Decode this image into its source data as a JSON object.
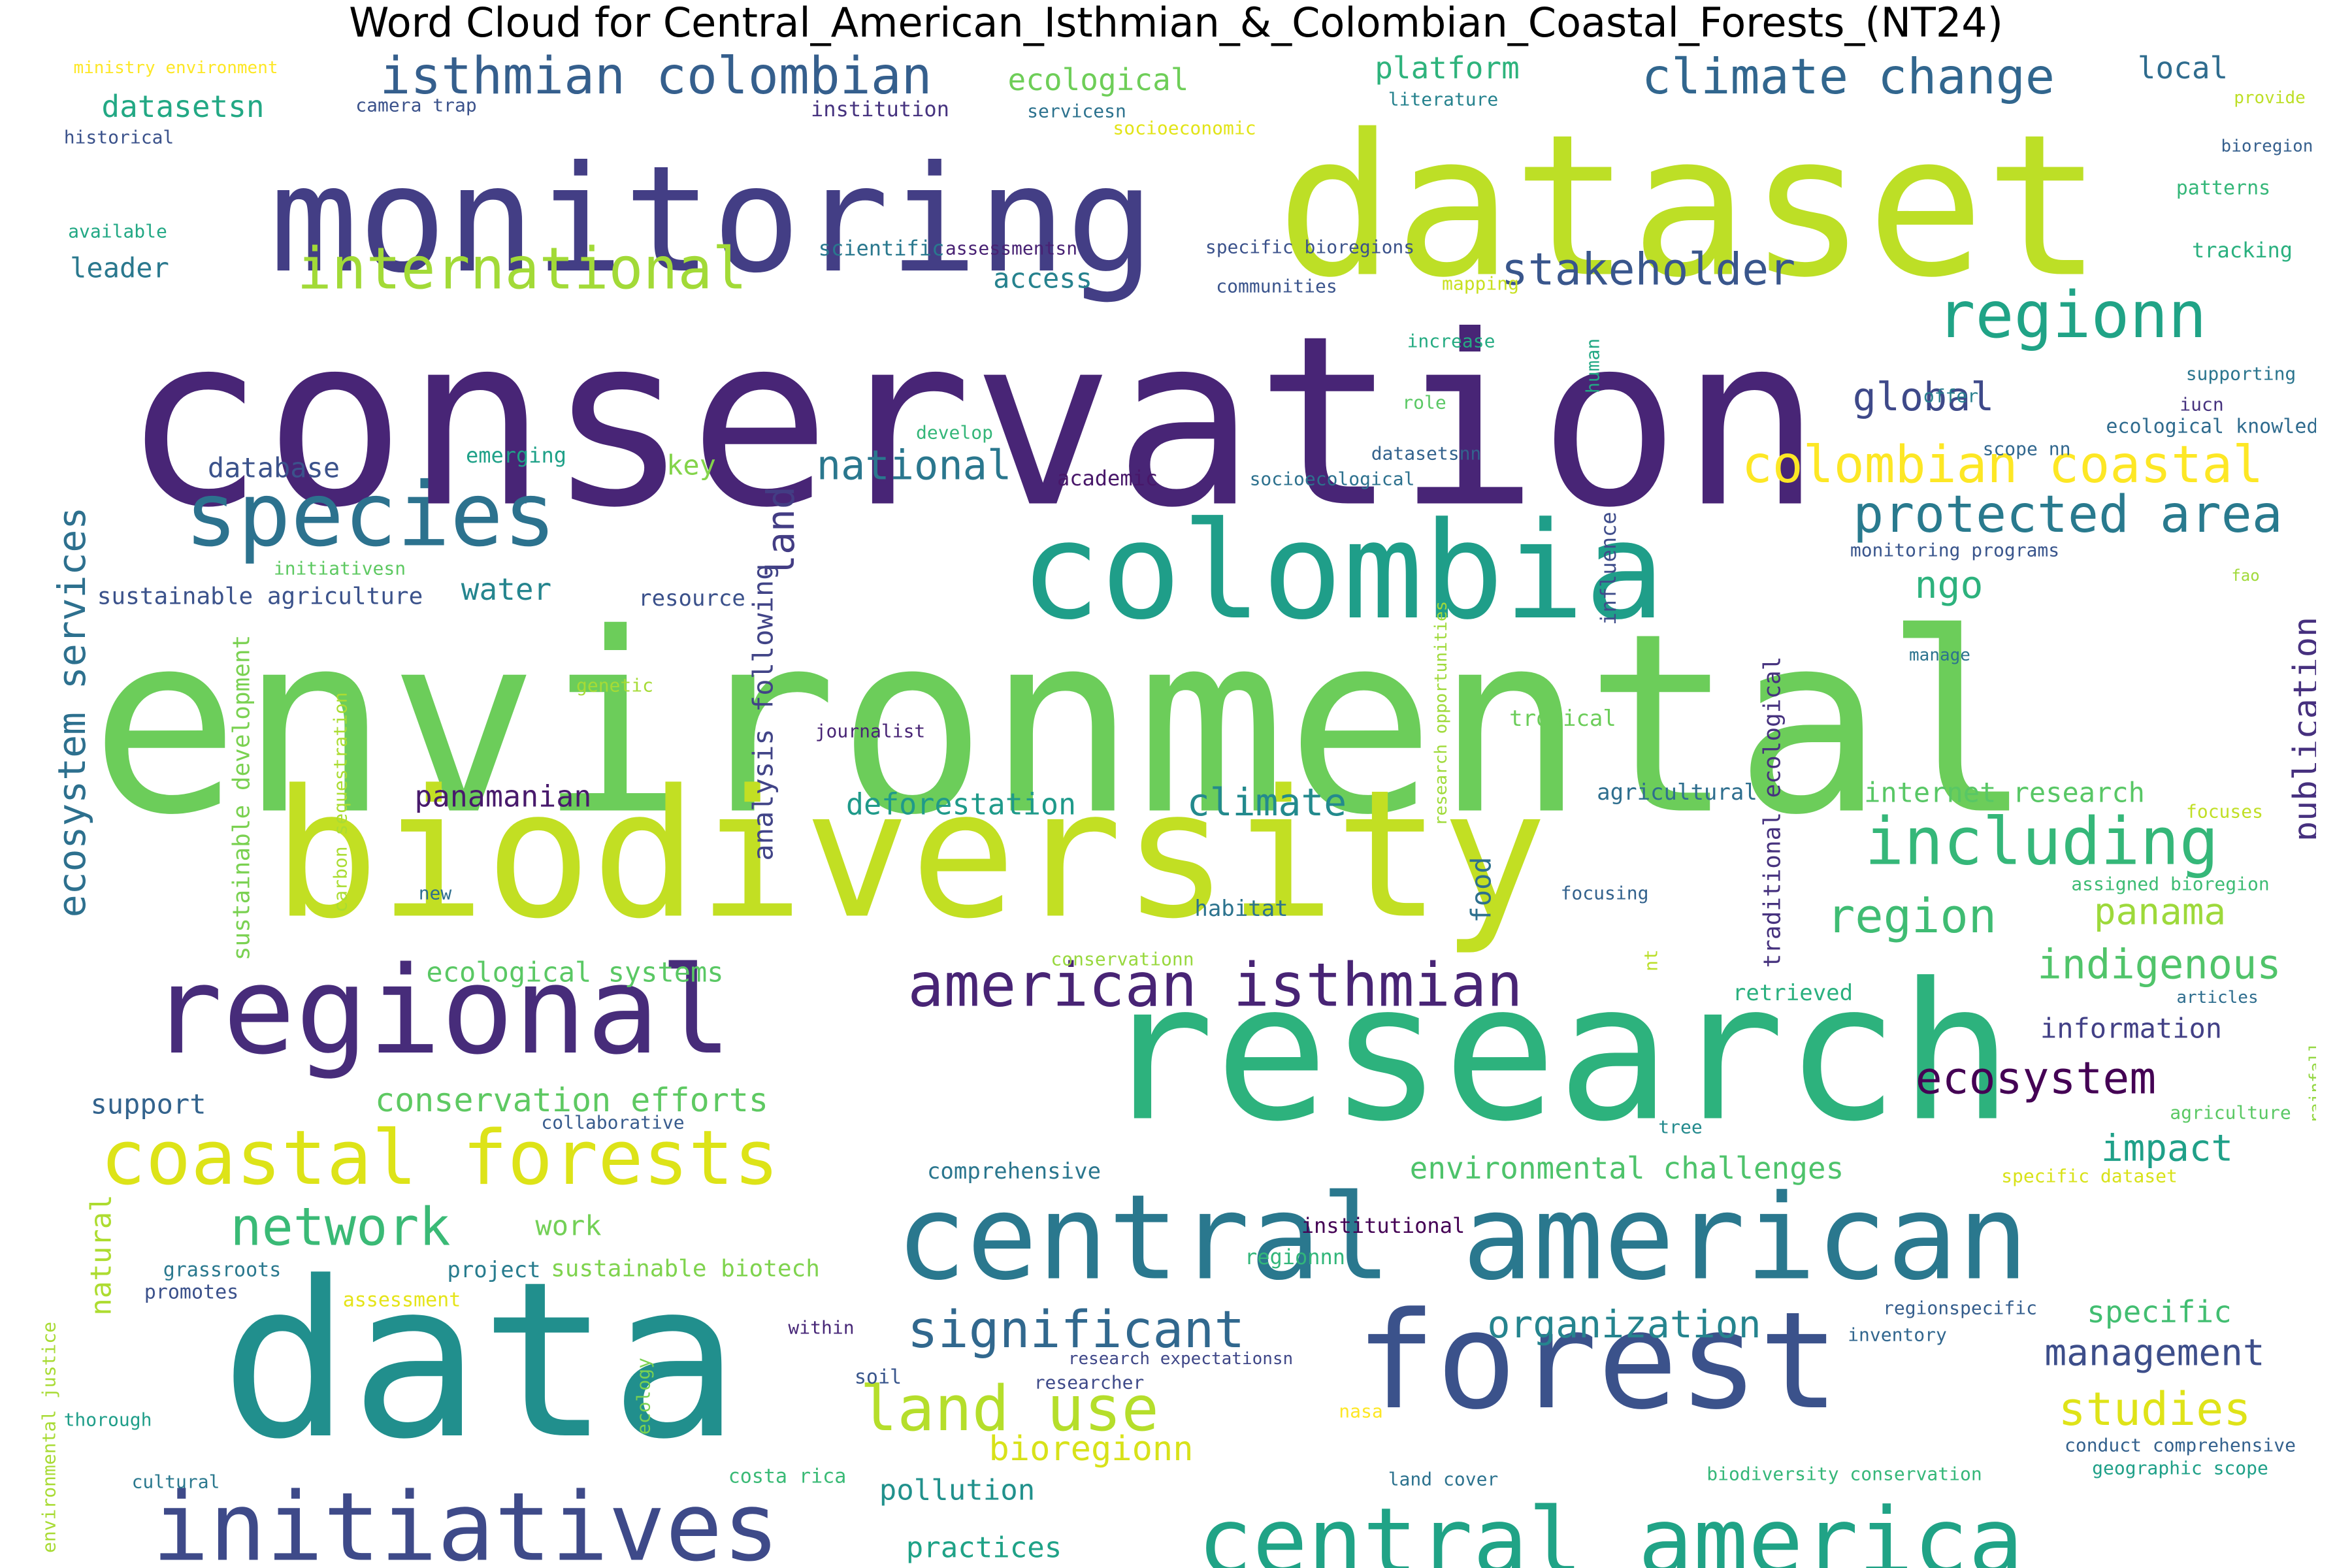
{
  "chart_data": {
    "type": "wordcloud",
    "title": "Word Cloud for Central_American_Isthmian_&_Colombian_Coastal_Forests_(NT24)",
    "colormap": "viridis",
    "background": "#ffffff",
    "words": [
      {
        "text": "conservation",
        "color": "#482576"
      },
      {
        "text": "environmental",
        "color": "#6ccd5a"
      },
      {
        "text": "biodiversity",
        "color": "#c2df23"
      },
      {
        "text": "dataset",
        "color": "#bddf26"
      },
      {
        "text": "monitoring",
        "color": "#433e85"
      },
      {
        "text": "research",
        "color": "#2db27d"
      },
      {
        "text": "data",
        "color": "#218f8d"
      },
      {
        "text": "forest",
        "color": "#3b528b"
      },
      {
        "text": "colombia",
        "color": "#1f9e89"
      },
      {
        "text": "regional",
        "color": "#472c7a"
      },
      {
        "text": "central american",
        "color": "#2a788e"
      },
      {
        "text": "central america",
        "color": "#20a386"
      },
      {
        "text": "initiatives",
        "color": "#3e4a89"
      },
      {
        "text": "species",
        "color": "#2c728e"
      },
      {
        "text": "coastal forests",
        "color": "#dde318"
      },
      {
        "text": "american isthmian",
        "color": "#482475"
      },
      {
        "text": "including",
        "color": "#35b779"
      },
      {
        "text": "international",
        "color": "#a2da37"
      },
      {
        "text": "isthmian colombian",
        "color": "#355f8d"
      },
      {
        "text": "climate change",
        "color": "#31668e"
      },
      {
        "text": "regionn",
        "color": "#20a386"
      },
      {
        "text": "colombian coastal",
        "color": "#fde725"
      },
      {
        "text": "protected area",
        "color": "#297a8e"
      },
      {
        "text": "significant",
        "color": "#31688e"
      },
      {
        "text": "land use",
        "color": "#b5de2b"
      },
      {
        "text": "ecosystem",
        "color": "#440154"
      },
      {
        "text": "stakeholder",
        "color": "#39568c"
      },
      {
        "text": "ecosystem services",
        "color": "#2d708e"
      },
      {
        "text": "network",
        "color": "#3aba76"
      },
      {
        "text": "region",
        "color": "#3fbc73"
      },
      {
        "text": "studies",
        "color": "#dfe318"
      },
      {
        "text": "national",
        "color": "#2a778e"
      },
      {
        "text": "organization",
        "color": "#25848e"
      },
      {
        "text": "management",
        "color": "#3d4e8a"
      },
      {
        "text": "global",
        "color": "#3e4989"
      },
      {
        "text": "publication",
        "color": "#46307e"
      },
      {
        "text": "indigenous",
        "color": "#50c46a"
      },
      {
        "text": "climate",
        "color": "#238a8d"
      },
      {
        "text": "panama",
        "color": "#9dd93b"
      },
      {
        "text": "impact",
        "color": "#1fa088"
      },
      {
        "text": "environmental challenges",
        "color": "#4ec36b"
      },
      {
        "text": "conservation efforts",
        "color": "#5ec962"
      },
      {
        "text": "bioregionn",
        "color": "#d8e219"
      },
      {
        "text": "datasetsn",
        "color": "#22a884"
      },
      {
        "text": "ecological",
        "color": "#6ece58"
      },
      {
        "text": "platform",
        "color": "#2eb37c"
      },
      {
        "text": "local",
        "color": "#2f6c8e"
      },
      {
        "text": "water",
        "color": "#25858e"
      },
      {
        "text": "ngo",
        "color": "#2db27d"
      },
      {
        "text": "specific",
        "color": "#42be71"
      },
      {
        "text": "information",
        "color": "#424086"
      },
      {
        "text": "deforestation",
        "color": "#1f9a8a"
      },
      {
        "text": "panamanian",
        "color": "#481a6c"
      },
      {
        "text": "pollution",
        "color": "#21918c"
      },
      {
        "text": "practices",
        "color": "#1fa287"
      },
      {
        "text": "internet research",
        "color": "#58c765"
      },
      {
        "text": "access",
        "color": "#26828e"
      },
      {
        "text": "leader",
        "color": "#2a788e"
      },
      {
        "text": "database",
        "color": "#3b528b"
      },
      {
        "text": "key",
        "color": "#84d44b"
      },
      {
        "text": "land",
        "color": "#433d84"
      },
      {
        "text": "analysis following",
        "color": "#414487"
      },
      {
        "text": "food",
        "color": "#2d708e"
      },
      {
        "text": "work",
        "color": "#73d056"
      },
      {
        "text": "support",
        "color": "#33638d"
      },
      {
        "text": "natural",
        "color": "#addc30"
      },
      {
        "text": "ecological systems",
        "color": "#5ac864"
      },
      {
        "text": "sustainable agriculture",
        "color": "#3b528b"
      },
      {
        "text": "sustainable development",
        "color": "#7ad151"
      },
      {
        "text": "traditional ecological",
        "color": "#46327e"
      },
      {
        "text": "tropical",
        "color": "#6ccd5a"
      },
      {
        "text": "habitat",
        "color": "#2c738e"
      },
      {
        "text": "comprehensive",
        "color": "#2a768e"
      },
      {
        "text": "sustainable biotech",
        "color": "#7fd34e"
      },
      {
        "text": "project",
        "color": "#287c8e"
      },
      {
        "text": "resource",
        "color": "#3b518b"
      },
      {
        "text": "retrieved",
        "color": "#2ab07f"
      },
      {
        "text": "agricultural",
        "color": "#2e6e8e"
      },
      {
        "text": "grassroots",
        "color": "#2a788e"
      },
      {
        "text": "promotes",
        "color": "#3b518b"
      },
      {
        "text": "assessment",
        "color": "#e5e419"
      },
      {
        "text": "institutional",
        "color": "#440154"
      },
      {
        "text": "regionnn",
        "color": "#32b67a"
      },
      {
        "text": "inventory",
        "color": "#31668e"
      },
      {
        "text": "regionspecific",
        "color": "#355e8d"
      },
      {
        "text": "within",
        "color": "#482878"
      },
      {
        "text": "soil",
        "color": "#39568c"
      },
      {
        "text": "researcher",
        "color": "#3e4a89"
      },
      {
        "text": "research expectationsn",
        "color": "#3f4788"
      },
      {
        "text": "environmental justice",
        "color": "#a8db34"
      },
      {
        "text": "ecology",
        "color": "#7ad151"
      },
      {
        "text": "nasa",
        "color": "#fde725"
      },
      {
        "text": "costa rica",
        "color": "#3aba76"
      },
      {
        "text": "land cover",
        "color": "#2c728e"
      },
      {
        "text": "biodiversity conservation",
        "color": "#35b779"
      },
      {
        "text": "conduct comprehensive",
        "color": "#34618d"
      },
      {
        "text": "geographic scope",
        "color": "#1fa088"
      },
      {
        "text": "cultural",
        "color": "#2a788e"
      },
      {
        "text": "thorough",
        "color": "#1f9e89"
      },
      {
        "text": "ministry environment",
        "color": "#fde725"
      },
      {
        "text": "camera trap",
        "color": "#3b528b"
      },
      {
        "text": "institution",
        "color": "#46337f"
      },
      {
        "text": "servicesn",
        "color": "#2c728e"
      },
      {
        "text": "socioeconomic",
        "color": "#e2e418"
      },
      {
        "text": "literature",
        "color": "#26828e"
      },
      {
        "text": "provide",
        "color": "#bddf26"
      },
      {
        "text": "historical",
        "color": "#3b528b"
      },
      {
        "text": "bioregion",
        "color": "#355f8d"
      },
      {
        "text": "patterns",
        "color": "#35b779"
      },
      {
        "text": "available",
        "color": "#22a884"
      },
      {
        "text": "scientific",
        "color": "#2a788e"
      },
      {
        "text": "assessmentsn",
        "color": "#482173"
      },
      {
        "text": "specific bioregions",
        "color": "#3b528b"
      },
      {
        "text": "tracking",
        "color": "#2ab07f"
      },
      {
        "text": "communities",
        "color": "#3a548c"
      },
      {
        "text": "mapping",
        "color": "#c8e020"
      },
      {
        "text": "increase",
        "color": "#25ab82"
      },
      {
        "text": "human",
        "color": "#22a884"
      },
      {
        "text": "supporting",
        "color": "#2b758e"
      },
      {
        "text": "offer",
        "color": "#277f8e"
      },
      {
        "text": "iucn",
        "color": "#46327e"
      },
      {
        "text": "role",
        "color": "#5ac864"
      },
      {
        "text": "develop",
        "color": "#34b679"
      },
      {
        "text": "emerging",
        "color": "#1fa188"
      },
      {
        "text": "datasetsnn",
        "color": "#33628d"
      },
      {
        "text": "scope nn",
        "color": "#31678e"
      },
      {
        "text": "ecological knowledge",
        "color": "#2f6b8e"
      },
      {
        "text": "academic",
        "color": "#481769"
      },
      {
        "text": "socioecological",
        "color": "#2d718e"
      },
      {
        "text": "influence",
        "color": "#3e4c8a"
      },
      {
        "text": "monitoring programs",
        "color": "#39558c"
      },
      {
        "text": "initiativesn",
        "color": "#5ec962"
      },
      {
        "text": "fao",
        "color": "#a0da39"
      },
      {
        "text": "manage",
        "color": "#2c738e"
      },
      {
        "text": "research opportunities",
        "color": "#9fda3a"
      },
      {
        "text": "genetic",
        "color": "#a5db36"
      },
      {
        "text": "carbon sequestration",
        "color": "#aadc32"
      },
      {
        "text": "journalist",
        "color": "#482475"
      },
      {
        "text": "focuses",
        "color": "#c0df25"
      },
      {
        "text": "assigned bioregion",
        "color": "#3dbc74"
      },
      {
        "text": "new",
        "color": "#2e6f8e"
      },
      {
        "text": "focusing",
        "color": "#33628d"
      },
      {
        "text": "nt",
        "color": "#bade28"
      },
      {
        "text": "conservationn",
        "color": "#98d83e"
      },
      {
        "text": "articles",
        "color": "#2e6d8e"
      },
      {
        "text": "rainfall",
        "color": "#93d741"
      },
      {
        "text": "agriculture",
        "color": "#5ac864"
      },
      {
        "text": "collaborative",
        "color": "#375b8d"
      },
      {
        "text": "tree",
        "color": "#238a8d"
      },
      {
        "text": "specific dataset",
        "color": "#d8e219"
      }
    ]
  }
}
